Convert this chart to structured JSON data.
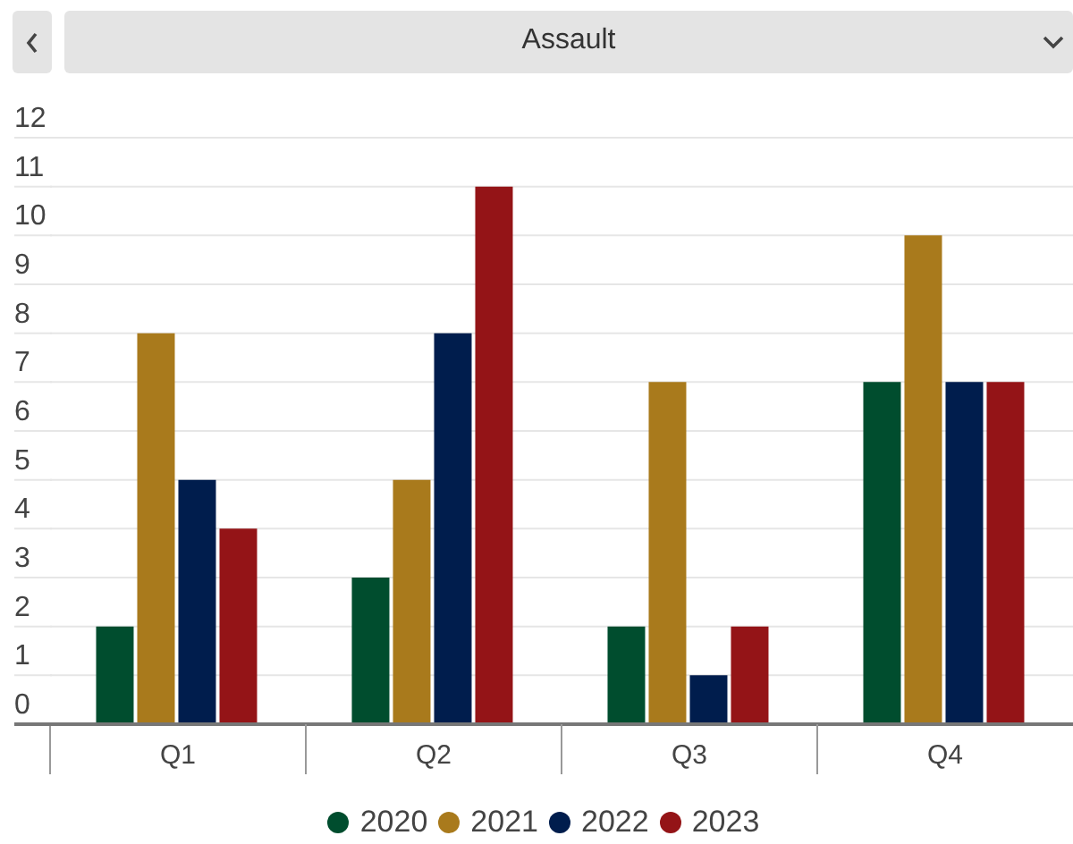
{
  "chart_data": {
    "type": "bar",
    "title": "Assault",
    "categories": [
      "Q1",
      "Q2",
      "Q3",
      "Q4"
    ],
    "series": [
      {
        "name": "2020",
        "color": "#004d2e",
        "values": [
          2,
          3,
          2,
          7
        ]
      },
      {
        "name": "2021",
        "color": "#a97a1c",
        "values": [
          8,
          5,
          7,
          10
        ]
      },
      {
        "name": "2022",
        "color": "#001d4d",
        "values": [
          5,
          8,
          1,
          7
        ]
      },
      {
        "name": "2023",
        "color": "#941417",
        "values": [
          4,
          11,
          2,
          7
        ]
      }
    ],
    "ylim": [
      0,
      12
    ],
    "yticks": [
      0,
      1,
      2,
      3,
      4,
      5,
      6,
      7,
      8,
      9,
      10,
      11,
      12
    ],
    "grid": "y",
    "legend": "bottom"
  }
}
